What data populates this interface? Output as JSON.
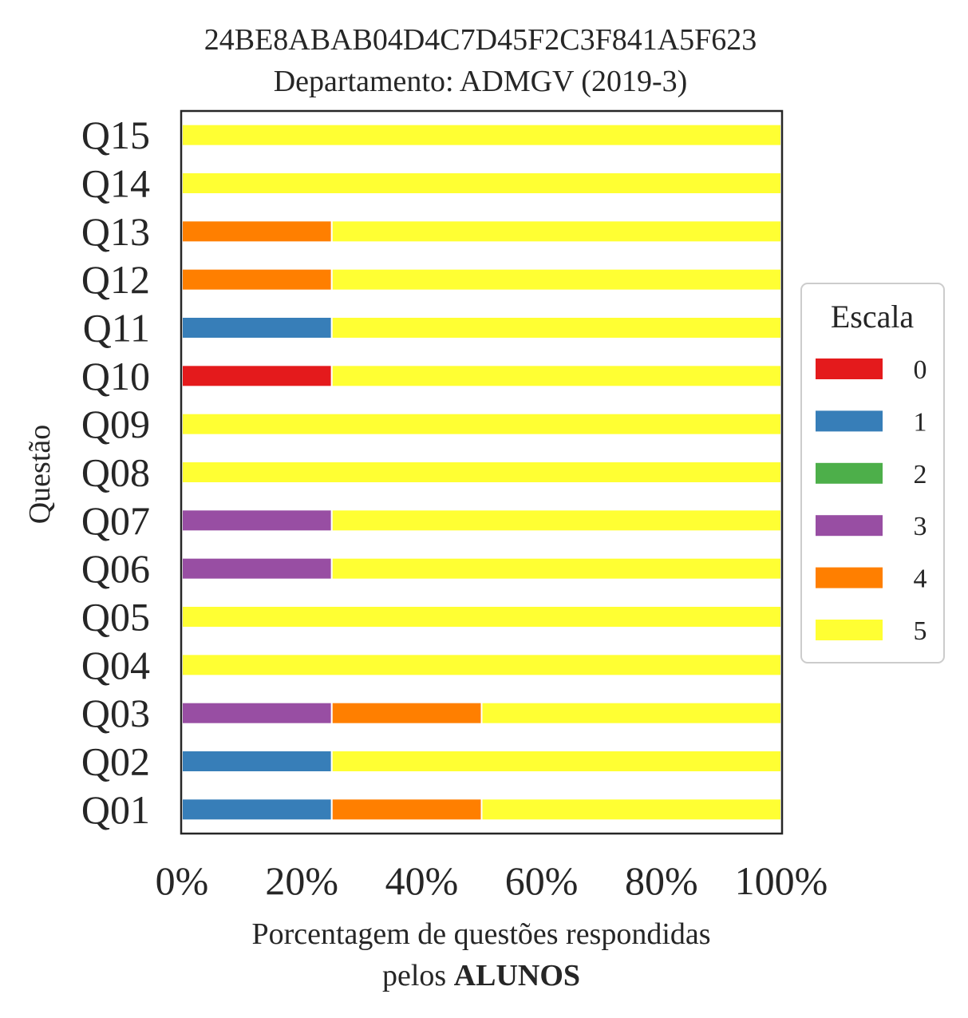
{
  "chart_data": {
    "type": "bar",
    "orientation": "horizontal",
    "stacked": true,
    "title": [
      "24BE8ABAB04D4C7D45F2C3F841A5F623",
      "Departamento: ADMGV (2019-3)"
    ],
    "ylabel": "Questão",
    "xlabel": {
      "line1": "Porcentagem de questões respondidas",
      "line2_prefix": "pelos ",
      "line2_bold": "ALUNOS"
    },
    "categories": [
      "Q01",
      "Q02",
      "Q03",
      "Q04",
      "Q05",
      "Q06",
      "Q07",
      "Q08",
      "Q09",
      "Q10",
      "Q11",
      "Q12",
      "Q13",
      "Q14",
      "Q15"
    ],
    "xlim": [
      0,
      100
    ],
    "xticks": [
      0,
      20,
      40,
      60,
      80,
      100
    ],
    "xtick_labels": [
      "0%",
      "20%",
      "40%",
      "60%",
      "80%",
      "100%"
    ],
    "grid": false,
    "legend": {
      "title": "Escala",
      "placement": "right",
      "entries": [
        "0",
        "1",
        "2",
        "3",
        "4",
        "5"
      ]
    },
    "series": [
      {
        "name": "0",
        "color": "#e41a1c",
        "values": [
          0,
          0,
          0,
          0,
          0,
          0,
          0,
          0,
          0,
          25,
          0,
          0,
          0,
          0,
          0
        ]
      },
      {
        "name": "1",
        "color": "#377eb8",
        "values": [
          25,
          25,
          0,
          0,
          0,
          0,
          0,
          0,
          0,
          0,
          25,
          0,
          0,
          0,
          0
        ]
      },
      {
        "name": "2",
        "color": "#4daf4a",
        "values": [
          0,
          0,
          0,
          0,
          0,
          0,
          0,
          0,
          0,
          0,
          0,
          0,
          0,
          0,
          0
        ]
      },
      {
        "name": "3",
        "color": "#984ea3",
        "values": [
          0,
          0,
          25,
          0,
          0,
          25,
          25,
          0,
          0,
          0,
          0,
          0,
          0,
          0,
          0
        ]
      },
      {
        "name": "4",
        "color": "#ff7f00",
        "values": [
          25,
          0,
          25,
          0,
          0,
          0,
          0,
          0,
          0,
          0,
          0,
          25,
          25,
          0,
          0
        ]
      },
      {
        "name": "5",
        "color": "#ffff33",
        "values": [
          50,
          75,
          50,
          100,
          100,
          75,
          75,
          100,
          100,
          75,
          75,
          75,
          75,
          100,
          100
        ]
      }
    ]
  }
}
